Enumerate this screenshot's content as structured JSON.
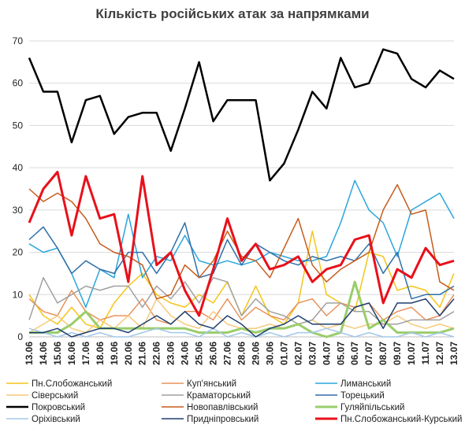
{
  "chart_data": {
    "type": "line",
    "title": "Кількість російських атак за напрямками",
    "xlabel": "",
    "ylabel": "",
    "ylim": [
      0,
      70
    ],
    "yticks": [
      0,
      10,
      20,
      30,
      40,
      50,
      60,
      70
    ],
    "grid": true,
    "legend_position": "bottom",
    "x": [
      "13.06",
      "14.06",
      "15.06",
      "16.06",
      "17.06",
      "18.06",
      "19.06",
      "20.06",
      "21.06",
      "22.06",
      "23.06",
      "24.06",
      "25.06",
      "26.06",
      "27.06",
      "28.06",
      "29.06",
      "30.06",
      "01.07",
      "02.07",
      "03.07",
      "04.07",
      "05.07",
      "06.07",
      "07.07",
      "08.07",
      "09.07",
      "10.07",
      "11.07",
      "12.07",
      "13.07"
    ],
    "x_tick_labels": [
      "13.06",
      "14.06",
      "15.06",
      "16.06",
      "17.06",
      "18.06",
      "19.06",
      "20.06",
      "21.06",
      "22.06",
      "23.06",
      "24.06",
      "25.06",
      "26.06",
      "27.06",
      "28.06",
      "29.06",
      "30.06",
      "01.07",
      "02.07",
      "03.07",
      "04.07",
      "05.07",
      "06.07",
      "07.07",
      "08.07",
      "09.07",
      "10.07",
      "11.07",
      "12.07",
      "13.07"
    ],
    "series": [
      {
        "name": "Пн.Слобожанський",
        "color": "#f5c518",
        "width": 1.5,
        "values": [
          10,
          5,
          3,
          7,
          3,
          2,
          8,
          12,
          15,
          10,
          8,
          7,
          10,
          8,
          13,
          5,
          12,
          5,
          3,
          8,
          25,
          10,
          8,
          6,
          20,
          19,
          11,
          12,
          11,
          7,
          15
        ]
      },
      {
        "name": "Куп'янський",
        "color": "#e8935c",
        "width": 1.5,
        "values": [
          9,
          6,
          5,
          11,
          6,
          4,
          5,
          5,
          9,
          4,
          3,
          6,
          6,
          4,
          9,
          4,
          7,
          5,
          4,
          8,
          9,
          5,
          8,
          7,
          8,
          4,
          6,
          7,
          4,
          5,
          10
        ]
      },
      {
        "name": "Лиманський",
        "color": "#2aa6dc",
        "width": 1.5,
        "values": [
          22,
          20,
          21,
          15,
          7,
          16,
          14,
          29,
          14,
          19,
          18,
          24,
          18,
          17,
          18,
          17,
          18,
          20,
          19,
          18,
          18,
          19,
          27,
          37,
          30,
          27,
          19,
          30,
          32,
          34,
          28
        ]
      },
      {
        "name": "Сіверський",
        "color": "#f7c97a",
        "width": 1.5,
        "values": [
          1,
          3,
          5,
          2,
          1,
          4,
          2,
          5,
          2,
          9,
          5,
          3,
          2,
          6,
          3,
          2,
          2,
          3,
          2,
          3,
          4,
          2,
          3,
          2,
          3,
          3,
          5,
          3,
          2,
          3,
          2
        ]
      },
      {
        "name": "Краматорський",
        "color": "#a0a0a0",
        "width": 1.5,
        "values": [
          4,
          14,
          8,
          10,
          12,
          11,
          12,
          12,
          7,
          12,
          9,
          13,
          8,
          14,
          13,
          5,
          9,
          6,
          5,
          3,
          4,
          8,
          8,
          6,
          6,
          3,
          3,
          4,
          4,
          4,
          6
        ]
      },
      {
        "name": "Торецький",
        "color": "#2f6fa8",
        "width": 1.5,
        "values": [
          23,
          26,
          21,
          15,
          18,
          16,
          15,
          20,
          20,
          15,
          20,
          27,
          14,
          15,
          23,
          17,
          22,
          20,
          18,
          17,
          19,
          18,
          19,
          18,
          22,
          15,
          20,
          9,
          10,
          10,
          12
        ]
      },
      {
        "name": "Покровський",
        "color": "#000000",
        "width": 2.5,
        "values": [
          66,
          58,
          58,
          46,
          56,
          57,
          48,
          52,
          53,
          53,
          44,
          54,
          65,
          51,
          56,
          56,
          56,
          37,
          41,
          49,
          58,
          54,
          66,
          59,
          60,
          68,
          67,
          61,
          59,
          63,
          61
        ]
      },
      {
        "name": "Новопавлівський",
        "color": "#c65c1b",
        "width": 1.5,
        "values": [
          35,
          32,
          34,
          32,
          28,
          22,
          20,
          19,
          17,
          9,
          10,
          17,
          14,
          18,
          25,
          19,
          18,
          14,
          21,
          28,
          17,
          13,
          16,
          18,
          20,
          30,
          36,
          29,
          30,
          13,
          11
        ]
      },
      {
        "name": "Гуляйпільський",
        "color": "#9acd6a",
        "width": 3,
        "values": [
          1,
          1,
          1,
          3,
          6,
          2,
          2,
          2,
          2,
          2,
          2,
          2,
          1,
          1,
          1,
          2,
          1,
          2,
          2,
          3,
          1,
          0,
          1,
          13,
          2,
          4,
          1,
          1,
          1,
          1,
          2
        ]
      },
      {
        "name": "Оріхівський",
        "color": "#a4c8e8",
        "width": 1.5,
        "values": [
          2,
          1,
          0,
          1,
          0,
          1,
          0,
          0,
          1,
          2,
          1,
          1,
          0,
          2,
          0,
          1,
          0,
          1,
          0,
          1,
          1,
          2,
          1,
          0,
          1,
          0,
          0,
          1,
          0,
          1,
          0
        ]
      },
      {
        "name": "Придніпровський",
        "color": "#1f3f6e",
        "width": 1.5,
        "values": [
          1,
          1,
          2,
          0,
          1,
          2,
          2,
          1,
          3,
          5,
          3,
          6,
          3,
          2,
          5,
          3,
          0,
          2,
          3,
          5,
          3,
          3,
          3,
          7,
          8,
          2,
          8,
          8,
          9,
          5,
          9
        ]
      },
      {
        "name": "Пн.Слобожанський-Курський",
        "color": "#e8101a",
        "width": 3,
        "values": [
          27,
          35,
          39,
          24,
          38,
          28,
          29,
          13,
          38,
          17,
          20,
          11,
          5,
          16,
          28,
          18,
          22,
          16,
          17,
          19,
          13,
          16,
          17,
          23,
          24,
          8,
          16,
          14,
          21,
          17,
          18
        ]
      }
    ]
  }
}
